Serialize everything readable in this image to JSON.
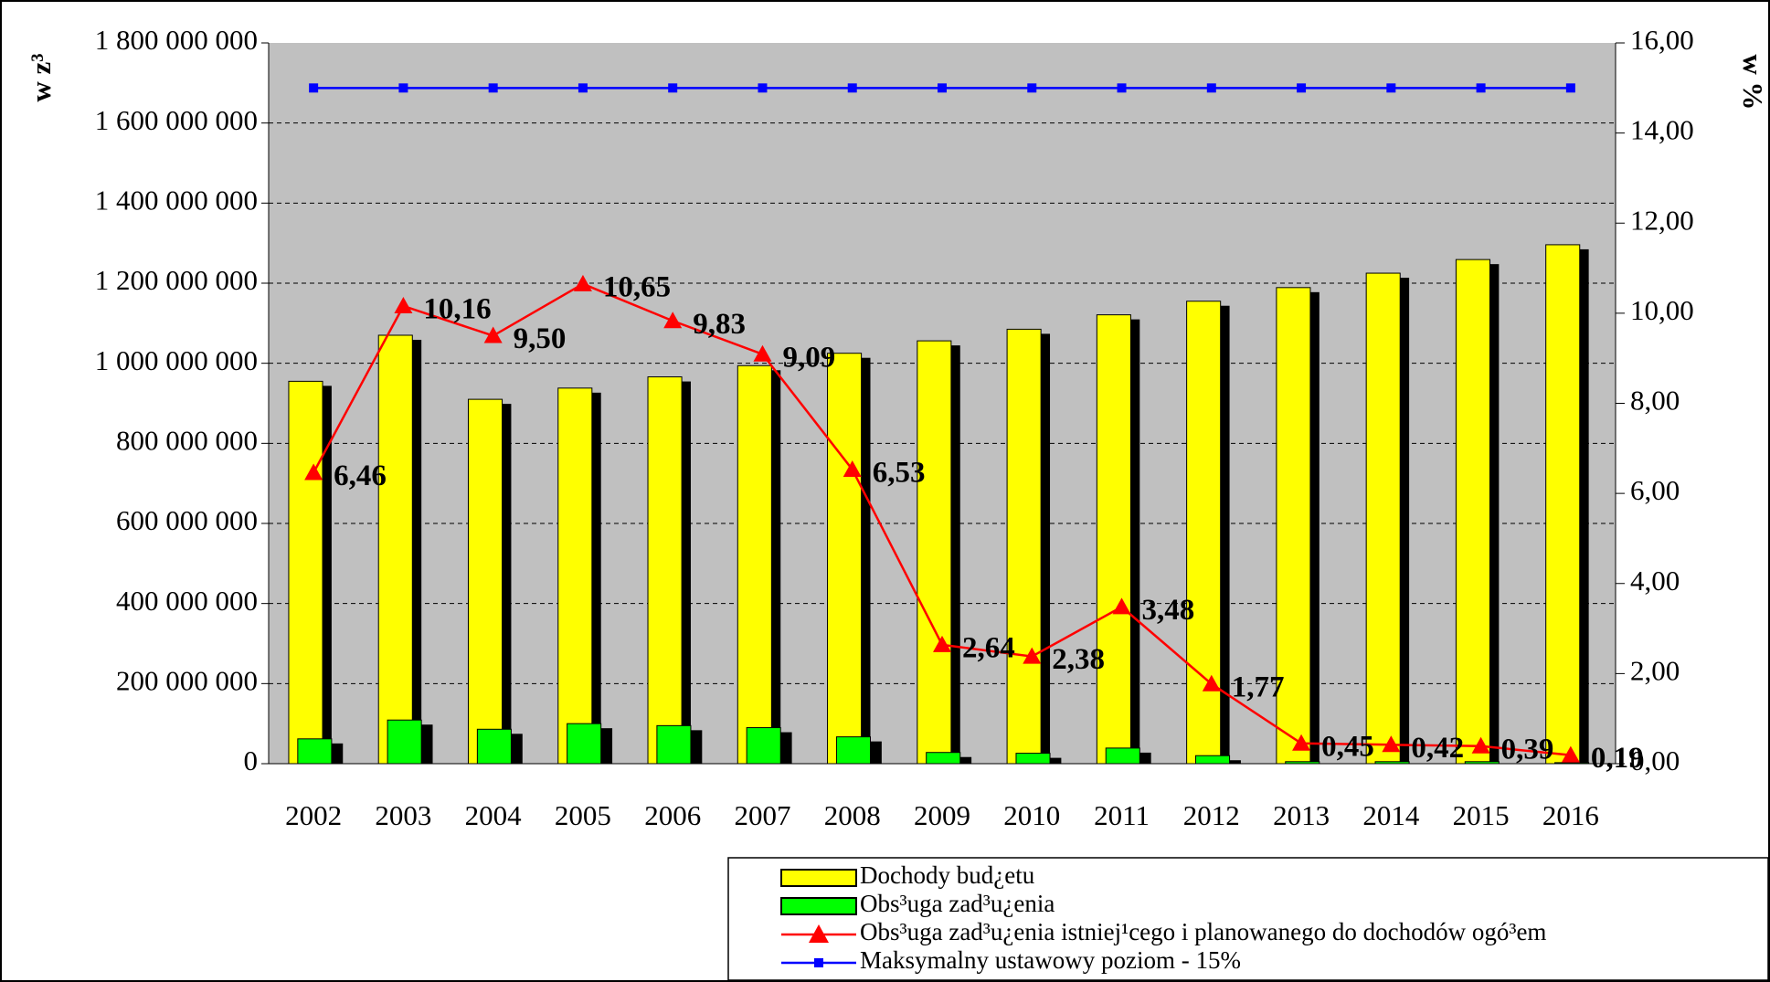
{
  "chart_data": {
    "type": "bar_line",
    "y_label": "w z³",
    "y2_label": "w %",
    "categories": [
      "2002",
      "2003",
      "2004",
      "2005",
      "2006",
      "2007",
      "2008",
      "2009",
      "2010",
      "2011",
      "2012",
      "2013",
      "2014",
      "2015",
      "2016"
    ],
    "series": [
      {
        "name": "Dochody bud¿etu",
        "type": "bar",
        "color": "#ffff00",
        "values": [
          955000000,
          1070000000,
          910000000,
          938000000,
          966000000,
          994000000,
          1025000000,
          1056000000,
          1085000000,
          1121000000,
          1155000000,
          1189000000,
          1225000000,
          1259000000,
          1296000000
        ]
      },
      {
        "name": "Obs³uga zad³u¿enia",
        "type": "bar",
        "color": "#00ff00",
        "values": [
          62000000,
          109000000,
          86000000,
          100000000,
          95000000,
          90000000,
          67000000,
          28000000,
          26000000,
          39000000,
          20000000,
          5000000,
          5000000,
          5000000,
          2500000
        ]
      },
      {
        "name": "Obs³uga zad³u¿enia istniej¹cego i planowanego do dochodów ogó³em",
        "type": "line",
        "axis": "y2",
        "color": "#ff0000",
        "marker": "triangle",
        "values": [
          6.46,
          10.16,
          9.5,
          10.65,
          9.83,
          9.09,
          6.53,
          2.64,
          2.38,
          3.48,
          1.77,
          0.45,
          0.42,
          0.39,
          0.19
        ],
        "value_labels": [
          "6,46",
          "10,16",
          "9,50",
          "10,65",
          "9,83",
          "9,09",
          "6,53",
          "2,64",
          "2,38",
          "3,48",
          "1,77",
          "0,45",
          "0,42",
          "0,39",
          "0,19"
        ]
      },
      {
        "name": "Maksymalny ustawowy poziom - 15%",
        "type": "line",
        "axis": "y2",
        "color": "#0000ff",
        "marker": "square",
        "values": [
          15,
          15,
          15,
          15,
          15,
          15,
          15,
          15,
          15,
          15,
          15,
          15,
          15,
          15,
          15
        ]
      }
    ],
    "ylim": [
      0,
      1800000000
    ],
    "yticks": [
      {
        "value": 0,
        "label": "0"
      },
      {
        "value": 200000000,
        "label": "200 000 000"
      },
      {
        "value": 400000000,
        "label": "400 000 000"
      },
      {
        "value": 600000000,
        "label": "600 000 000"
      },
      {
        "value": 800000000,
        "label": "800 000 000"
      },
      {
        "value": 1000000000,
        "label": "1 000 000 000"
      },
      {
        "value": 1200000000,
        "label": "1 200 000 000"
      },
      {
        "value": 1400000000,
        "label": "1 400 000 000"
      },
      {
        "value": 1600000000,
        "label": "1 600 000 000"
      },
      {
        "value": 1800000000,
        "label": "1 800 000 000"
      }
    ],
    "y2lim": [
      0,
      16
    ],
    "y2ticks": [
      {
        "value": 0,
        "label": "0,00"
      },
      {
        "value": 2,
        "label": "2,00"
      },
      {
        "value": 4,
        "label": "4,00"
      },
      {
        "value": 6,
        "label": "6,00"
      },
      {
        "value": 8,
        "label": "8,00"
      },
      {
        "value": 10,
        "label": "10,00"
      },
      {
        "value": 12,
        "label": "12,00"
      },
      {
        "value": 14,
        "label": "14,00"
      },
      {
        "value": 16,
        "label": "16,00"
      }
    ],
    "grid": true,
    "plot_background": "#c0c0c0",
    "legend": "bottom-right"
  }
}
